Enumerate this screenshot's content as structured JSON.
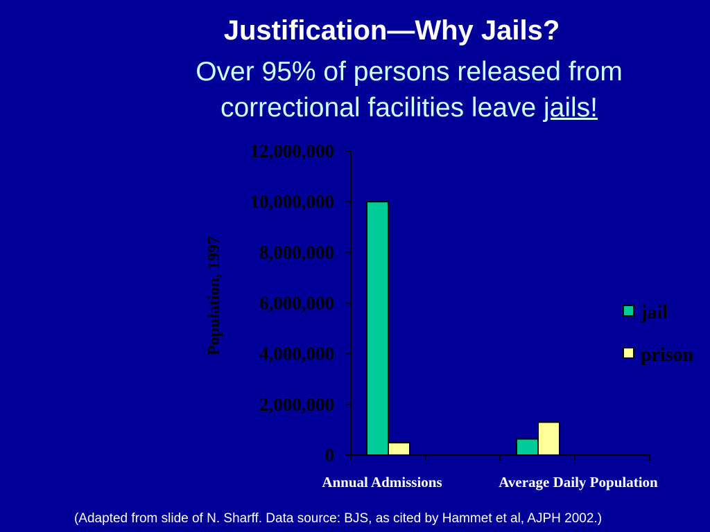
{
  "slide": {
    "title": "Justification—Why Jails?",
    "subtitle_line1": "Over 95% of persons released from",
    "subtitle_line2_prefix": "correctional facilities leave ",
    "subtitle_link": "jails!",
    "footer": "(Adapted from slide of N. Sharff.  Data source: BJS, as cited by Hammet et al, AJPH 2002.)"
  },
  "colors": {
    "background": "#000099",
    "title": "#ffffff",
    "subtitle": "#ccffff",
    "axis": "#000000",
    "text": "#000000",
    "jail": "#00cc99",
    "prison": "#ffff99"
  },
  "chart_data": {
    "type": "bar",
    "title": "",
    "xlabel": "",
    "ylabel": "Population, 1997",
    "categories": [
      "Annual Admissions",
      "Average Daily Population"
    ],
    "series": [
      {
        "name": "jail",
        "values": [
          10000000,
          640000
        ]
      },
      {
        "name": "prison",
        "values": [
          490000,
          1300000
        ]
      }
    ],
    "ylim": [
      0,
      12000000
    ],
    "yticks": [
      0,
      2000000,
      4000000,
      6000000,
      8000000,
      10000000,
      12000000
    ],
    "ytick_labels": [
      "0",
      "2,000,000",
      "4,000,000",
      "6,000,000",
      "8,000,000",
      "10,000,000",
      "12,000,000"
    ],
    "grid": false,
    "legend_position": "right"
  }
}
